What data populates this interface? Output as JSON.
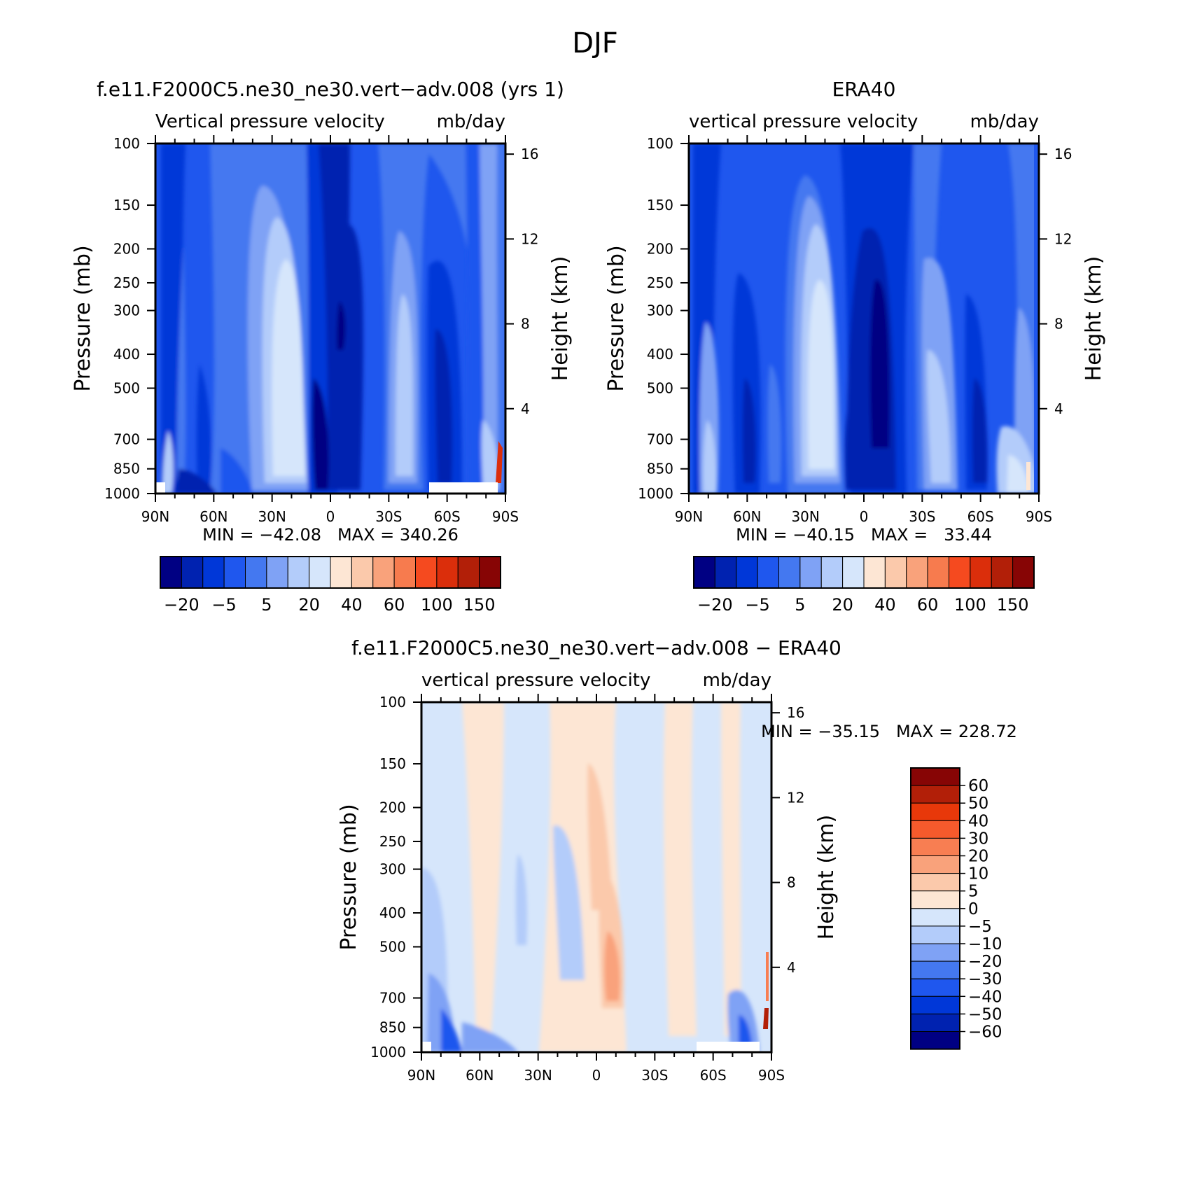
{
  "figure_title": "DJF",
  "panels": {
    "model": {
      "title": "f.e11.F2000C5.ne30_ne30.vert-adv.008 (yrs 1)",
      "subtitle_left": "Vertical pressure velocity",
      "subtitle_right": "mb/day",
      "min_max": "MIN = -42.08   MAX = 340.26"
    },
    "obs": {
      "title": "ERA40",
      "subtitle_left": "vertical pressure velocity",
      "subtitle_right": "mb/day",
      "min_max": "MIN = -40.15   MAX =   33.44"
    },
    "diff": {
      "title": "f.e11.F2000C5.ne30_ne30.vert-adv.008 - ERA40",
      "subtitle_left": "vertical pressure velocity",
      "subtitle_right": "mb/day",
      "min_max": "MIN = -35.15   MAX = 228.72"
    }
  },
  "axes": {
    "ylabel": "Pressure (mb)",
    "ylabel_right": "Height (km)",
    "pressure_ticks": [
      "100",
      "150",
      "200",
      "250",
      "300",
      "400",
      "500",
      "700",
      "850",
      "1000"
    ],
    "height_ticks": [
      "16",
      "12",
      "8",
      "4"
    ],
    "lat_ticks": [
      "90N",
      "60N",
      "30N",
      "0",
      "30S",
      "60S",
      "90S"
    ]
  },
  "colorbars": {
    "top_labels": [
      "-20",
      "-5",
      "5",
      "20",
      "40",
      "60",
      "100",
      "150"
    ],
    "top_colors": [
      "#000083",
      "#0022b0",
      "#0037d8",
      "#1f57ee",
      "#4478f0",
      "#7fa2f5",
      "#b3ccfa",
      "#d6e6fb",
      "#fde6d4",
      "#fbc9ab",
      "#f9a27b",
      "#f77b4e",
      "#f54a1f",
      "#db2e0b",
      "#b21f08",
      "#870505"
    ],
    "diff_labels": [
      "60",
      "50",
      "40",
      "30",
      "20",
      "10",
      "5",
      "0",
      "-5",
      "-10",
      "-20",
      "-30",
      "-40",
      "-50",
      "-60"
    ],
    "diff_colors": [
      "#870505",
      "#b21f08",
      "#e8380a",
      "#f65a2c",
      "#f87e52",
      "#f9a27b",
      "#fbc9ab",
      "#fde6d4",
      "#d6e6fb",
      "#b3ccfa",
      "#7fa2f5",
      "#4478f0",
      "#1f57ee",
      "#0037d8",
      "#0022b0",
      "#000083"
    ]
  },
  "chart_data": [
    {
      "type": "heatmap",
      "title": "f.e11.F2000C5.ne30_ne30.vert-adv.008 (yrs 1)",
      "xlabel": "",
      "ylabel": "Pressure (mb)",
      "ylabel_right": "Height (km)",
      "xlim": [
        90,
        -90
      ],
      "ylim": [
        1000,
        100
      ],
      "y_scale": "log",
      "levels": [
        -25,
        -20,
        -15,
        -10,
        -5,
        0,
        5,
        10,
        20,
        30,
        40,
        50,
        60,
        80,
        100,
        120,
        150
      ],
      "min": -42.08,
      "max": 340.26,
      "x": [
        90,
        60,
        30,
        0,
        -30,
        -60,
        -90
      ],
      "features": [
        {
          "x": 22,
          "y": 650,
          "value": 25
        },
        {
          "x": 4,
          "y": 500,
          "value": -20
        },
        {
          "x": -28,
          "y": 650,
          "value": 15
        },
        {
          "x": -55,
          "y": 500,
          "value": -10
        }
      ]
    },
    {
      "type": "heatmap",
      "title": "ERA40",
      "xlabel": "",
      "ylabel": "Pressure (mb)",
      "ylabel_right": "Height (km)",
      "xlim": [
        90,
        -90
      ],
      "ylim": [
        1000,
        100
      ],
      "y_scale": "log",
      "min": -40.15,
      "max": 33.44,
      "x": [
        90,
        60,
        30,
        0,
        -30,
        -60,
        -90
      ],
      "features": [
        {
          "x": 25,
          "y": 500,
          "value": 25
        },
        {
          "x": -8,
          "y": 400,
          "value": -20
        },
        {
          "x": -32,
          "y": 600,
          "value": 15
        },
        {
          "x": 62,
          "y": 500,
          "value": -10
        }
      ]
    },
    {
      "type": "heatmap",
      "title": "f.e11.F2000C5.ne30_ne30.vert-adv.008 - ERA40",
      "xlabel": "",
      "ylabel": "Pressure (mb)",
      "ylabel_right": "Height (km)",
      "xlim": [
        90,
        -90
      ],
      "ylim": [
        1000,
        100
      ],
      "y_scale": "log",
      "levels": [
        -60,
        -50,
        -40,
        -30,
        -20,
        -10,
        -5,
        0,
        5,
        10,
        20,
        30,
        40,
        50,
        60
      ],
      "min": -35.15,
      "max": 228.72,
      "x": [
        90,
        60,
        30,
        0,
        -30,
        -60,
        -90
      ],
      "features": [
        {
          "x": -8,
          "y": 550,
          "value": 15
        },
        {
          "x": 15,
          "y": 450,
          "value": -10
        },
        {
          "x": 80,
          "y": 850,
          "value": -20
        },
        {
          "x": -35,
          "y": 300,
          "value": 3
        }
      ]
    }
  ]
}
